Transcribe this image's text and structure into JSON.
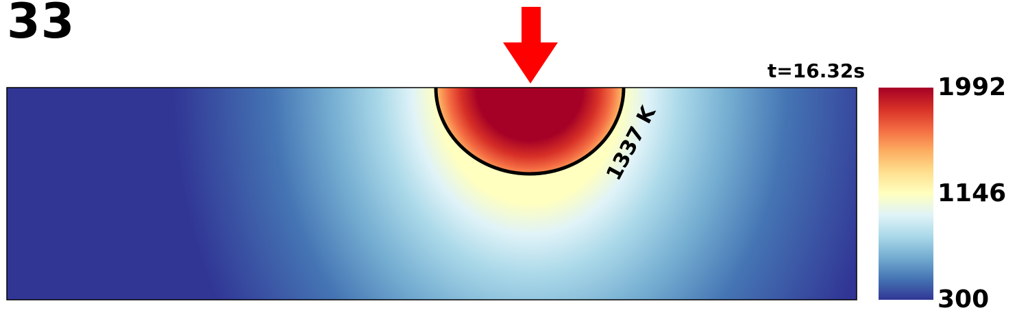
{
  "frame_number": "33",
  "time_label": "t=16.32s",
  "chart_data": {
    "type": "heatmap",
    "title": "",
    "xlabel": "",
    "ylabel": "",
    "colorbar": {
      "min": 300,
      "max": 1992,
      "ticks": [
        {
          "value": 1992,
          "label": "1992"
        },
        {
          "value": 1146,
          "label": "1146"
        },
        {
          "value": 300,
          "label": "300"
        }
      ],
      "colormap": [
        "#313695",
        "#4575b4",
        "#74add1",
        "#abd9e9",
        "#e0f3f8",
        "#ffffbf",
        "#fee090",
        "#fdae61",
        "#f46d43",
        "#d73027",
        "#a50026"
      ]
    },
    "contour": {
      "value": 1337,
      "label": "1337 K",
      "color": "#000000"
    },
    "laser_arrow": {
      "color": "#ff0000",
      "position": "top-center"
    }
  }
}
